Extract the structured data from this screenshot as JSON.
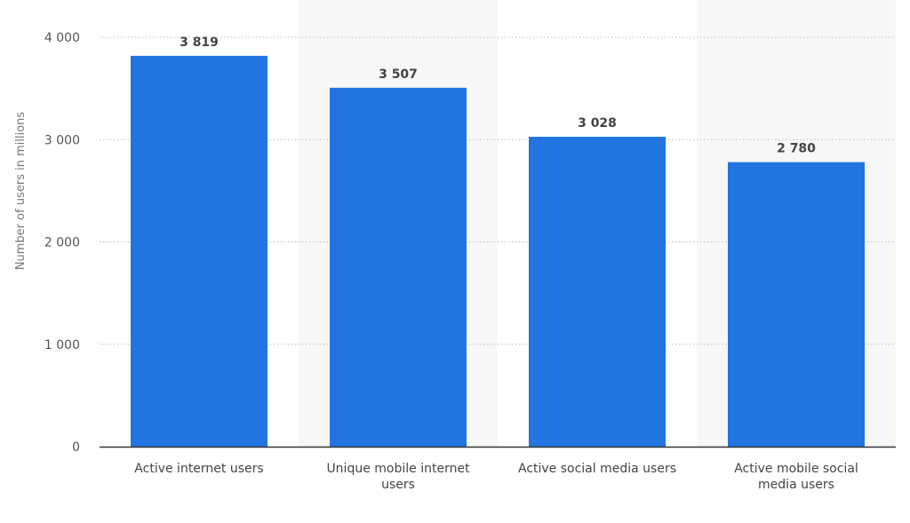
{
  "chart_data": {
    "type": "bar",
    "categories": [
      "Active internet users",
      "Unique mobile internet users",
      "Active social media users",
      "Active mobile social media users"
    ],
    "category_label_lines": [
      [
        "Active internet users"
      ],
      [
        "Unique mobile internet",
        "users"
      ],
      [
        "Active social media users"
      ],
      [
        "Active mobile social",
        "media users"
      ]
    ],
    "values": [
      3819,
      3507,
      3028,
      2780
    ],
    "value_labels": [
      "3 819",
      "3 507",
      "3 028",
      "2 780"
    ],
    "title": "",
    "xlabel": "",
    "ylabel": "Number of users in millions",
    "ylim": [
      0,
      4000
    ],
    "yticks": [
      0,
      1000,
      2000,
      3000,
      4000
    ],
    "ytick_labels": [
      "0",
      "1 000",
      "2 000",
      "3 000",
      "4 000"
    ],
    "grid": true,
    "legend": "none",
    "colors": {
      "bar": "#2275e0",
      "alt_band": "#f7f7f7",
      "grid": "#bbbbbb",
      "axis": "#333333"
    }
  }
}
